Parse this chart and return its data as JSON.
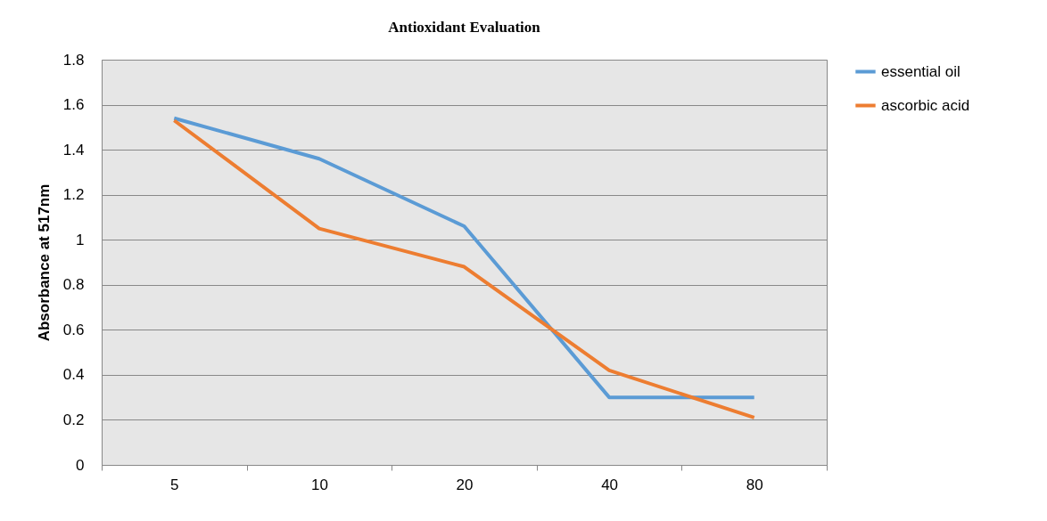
{
  "chart_data": {
    "type": "line",
    "title": "Antioxidant  Evaluation",
    "ylabel": "Absorbance at 517nm",
    "categories": [
      "5",
      "10",
      "20",
      "40",
      "80"
    ],
    "series": [
      {
        "name": "essential oil",
        "color": "#5b9bd5",
        "values": [
          1.54,
          1.36,
          1.06,
          0.3,
          0.3
        ]
      },
      {
        "name": "ascorbic acid",
        "color": "#ed7d31",
        "values": [
          1.53,
          1.05,
          0.88,
          0.42,
          0.21
        ]
      }
    ],
    "ylim": [
      0,
      1.8
    ],
    "yticks": [
      0,
      0.2,
      0.4,
      0.6,
      0.8,
      1,
      1.2,
      1.4,
      1.6,
      1.8
    ],
    "grid": "y",
    "legend": "right",
    "line_style": "solid",
    "marker": "none"
  }
}
